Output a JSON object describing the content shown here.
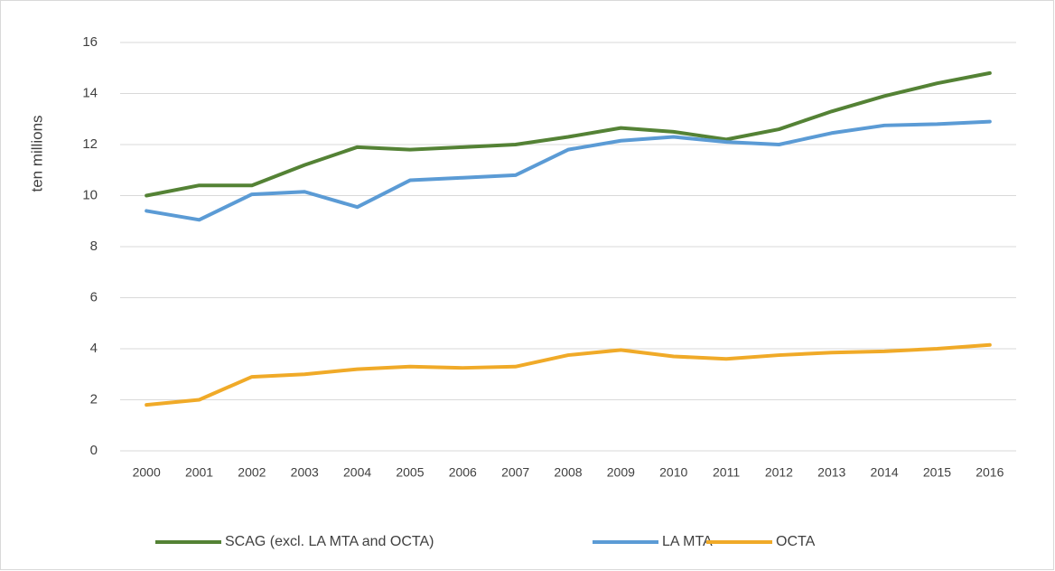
{
  "chart_data": {
    "type": "line",
    "y_label": "ten millions",
    "categories": [
      "2000",
      "2001",
      "2002",
      "2003",
      "2004",
      "2005",
      "2006",
      "2007",
      "2008",
      "2009",
      "2010",
      "2011",
      "2012",
      "2013",
      "2014",
      "2015",
      "2016"
    ],
    "series": [
      {
        "name": "SCAG (excl. LA MTA and OCTA)",
        "color": "#548235",
        "values": [
          10.0,
          10.4,
          10.4,
          11.2,
          11.9,
          11.8,
          11.9,
          12.0,
          12.3,
          12.65,
          12.5,
          12.2,
          12.6,
          13.3,
          13.9,
          14.4,
          14.8
        ]
      },
      {
        "name": "LA MTA",
        "color": "#5b9bd5",
        "values": [
          9.4,
          9.05,
          10.05,
          10.15,
          9.55,
          10.6,
          10.7,
          10.8,
          11.8,
          12.15,
          12.3,
          12.1,
          12.0,
          12.45,
          12.75,
          12.8,
          12.9
        ]
      },
      {
        "name": "OCTA",
        "color": "#f0aa28",
        "values": [
          1.8,
          2.0,
          2.9,
          3.0,
          3.2,
          3.3,
          3.25,
          3.3,
          3.75,
          3.95,
          3.7,
          3.6,
          3.75,
          3.85,
          3.9,
          4.0,
          4.15
        ]
      }
    ],
    "ylim": [
      0,
      16
    ],
    "yticks": [
      0,
      2,
      4,
      6,
      8,
      10,
      12,
      14,
      16
    ],
    "grid": true,
    "legend": "bottom"
  }
}
